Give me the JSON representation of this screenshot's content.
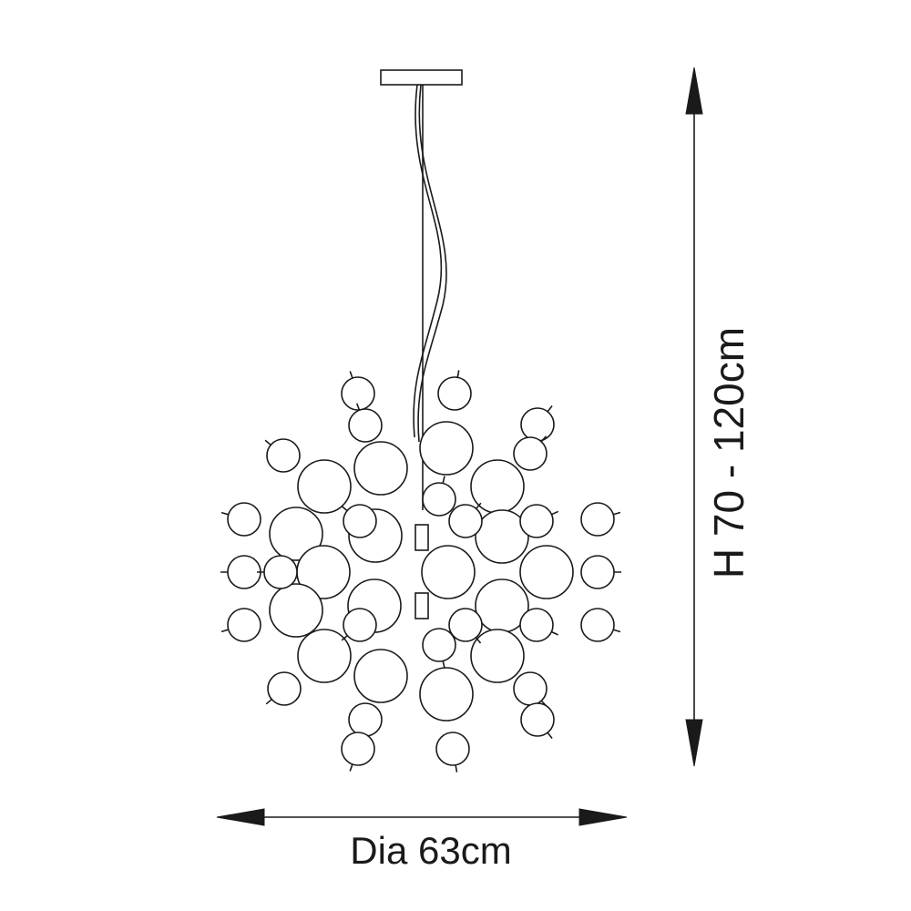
{
  "drawing": {
    "subject": "pendant-chandelier",
    "line_color": "#1a1a1a",
    "background": "#ffffff"
  },
  "dimensions": {
    "diameter_label": "Dia 63cm",
    "height_label": "H 70 - 120cm"
  }
}
